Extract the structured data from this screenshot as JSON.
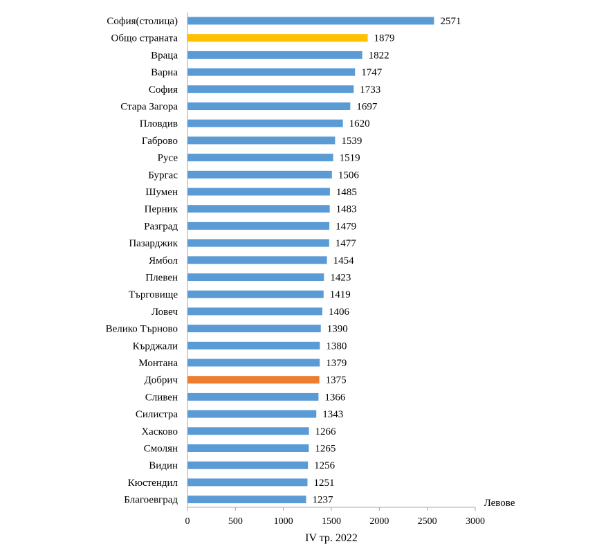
{
  "chart_data": {
    "type": "bar",
    "orientation": "horizontal",
    "categories": [
      "София(столица)",
      "Общо страната",
      "Враца",
      "Варна",
      "София",
      "Стара Загора",
      "Пловдив",
      "Габрово",
      "Русе",
      "Бургас",
      "Шумен",
      "Перник",
      "Разград",
      "Пазарджик",
      "Ямбол",
      "Плевен",
      "Търговище",
      "Ловеч",
      "Велико Търново",
      "Кърджали",
      "Монтана",
      "Добрич",
      "Сливен",
      "Силистра",
      "Хасково",
      "Смолян",
      "Видин",
      "Кюстендил",
      "Благоевград"
    ],
    "values": [
      2571,
      1879,
      1822,
      1747,
      1733,
      1697,
      1620,
      1539,
      1519,
      1506,
      1485,
      1483,
      1479,
      1477,
      1454,
      1423,
      1419,
      1406,
      1390,
      1380,
      1379,
      1375,
      1366,
      1343,
      1266,
      1265,
      1256,
      1251,
      1237
    ],
    "data_labels": [
      "2571",
      "1879",
      "1822",
      "1747",
      "1733",
      "1697",
      "1620",
      "1539",
      "1519",
      "1506",
      "1485",
      "1483",
      "1479",
      "1477",
      "1454",
      "1423",
      "1419",
      "1406",
      "1390",
      "1380",
      "1379",
      "1375",
      "1366",
      "1343",
      "1266",
      "1265",
      "1256",
      "1251",
      "1237"
    ],
    "xlim": [
      0,
      3000
    ],
    "x_ticks": [
      0,
      500,
      1000,
      1500,
      2000,
      2500,
      3000
    ],
    "x_tick_labels": [
      "0",
      "500",
      "1000",
      "1500",
      "2000",
      "2500",
      "3000"
    ],
    "xlabel": "IV тр. 2022",
    "unit_label": "Левове",
    "title": "",
    "grid": false,
    "legend": "none",
    "colors": {
      "default": "#5b9bd5",
      "highlights": {
        "Общо страната": "#ffc000",
        "Добрич": "#ed7d31"
      },
      "axis": "#a6a6a6"
    }
  }
}
